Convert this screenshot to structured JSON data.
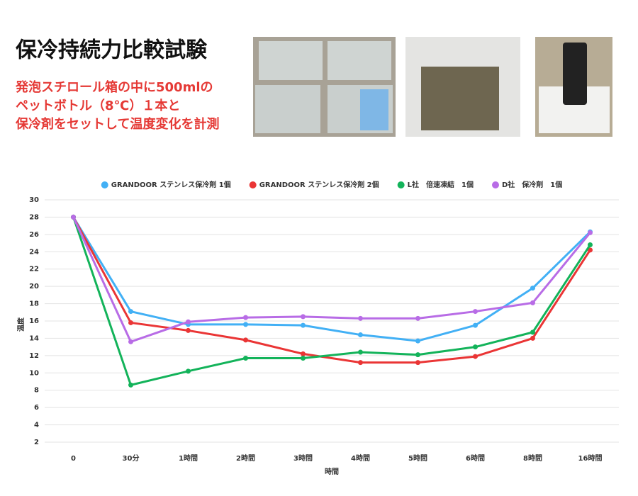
{
  "chart_data": {
    "type": "line",
    "title": "保冷持続力比較試験",
    "subtitle": [
      "発泡スチロール箱の中に500mlの",
      "ペットボトル（8℃）１本と",
      "保冷剤をセットして温度変化を計測"
    ],
    "x_label": "時間",
    "y_label": "温度",
    "categories": [
      "0",
      "30分",
      "1時間",
      "2時間",
      "3時間",
      "4時間",
      "5時間",
      "6時間",
      "8時間",
      "16時間"
    ],
    "series": [
      {
        "name": "GRANDOOR ステンレス保冷剤 1個",
        "color": "#42b0f5",
        "values": [
          28,
          17.1,
          15.6,
          15.6,
          15.5,
          14.4,
          13.7,
          15.5,
          19.8,
          26.3
        ]
      },
      {
        "name": "GRANDOOR ステンレス保冷剤 2個",
        "color": "#ea3535",
        "values": [
          28,
          15.8,
          14.9,
          13.8,
          12.2,
          11.2,
          11.2,
          11.9,
          14.0,
          24.2
        ]
      },
      {
        "name": "L社　倍速凍結　1個",
        "color": "#13b35a",
        "values": [
          28,
          8.6,
          10.2,
          11.7,
          11.7,
          12.4,
          12.1,
          13.0,
          14.7,
          24.8
        ]
      },
      {
        "name": "D社　保冷剤　1個",
        "color": "#b86ce6",
        "values": [
          28,
          13.6,
          15.9,
          16.4,
          16.5,
          16.3,
          16.3,
          17.1,
          18.1,
          26.2
        ]
      }
    ],
    "ylim": [
      2,
      30
    ],
    "yticks": [
      2,
      4,
      6,
      8,
      10,
      12,
      14,
      16,
      18,
      20,
      22,
      24,
      26,
      28,
      30
    ],
    "grid": true,
    "legend": "top"
  }
}
